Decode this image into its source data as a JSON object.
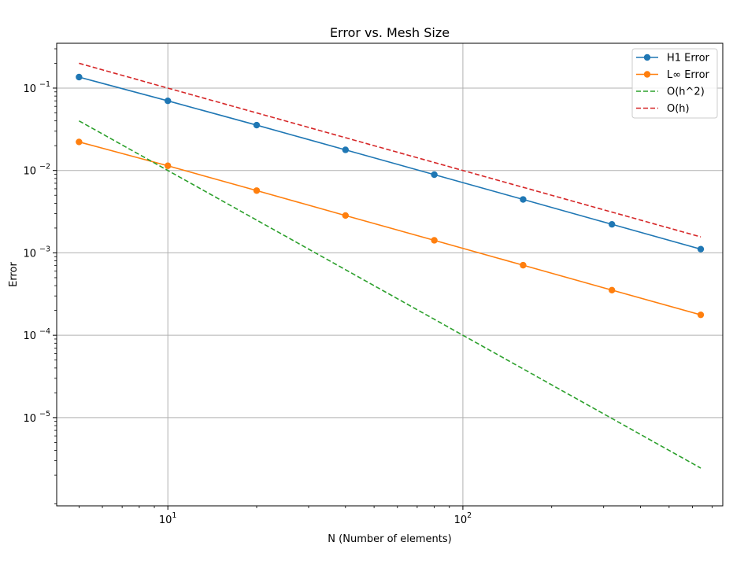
{
  "chart_data": {
    "type": "line",
    "title": "Error vs. Mesh Size",
    "xlabel": "N (Number of elements)",
    "ylabel": "Error",
    "xscale": "log",
    "yscale": "log",
    "xlim": [
      4.2,
      760
    ],
    "ylim": [
      8.5e-07,
      0.35
    ],
    "grid": true,
    "legend_position": "top-right",
    "x_ticks": [
      {
        "value": 10,
        "base": "10",
        "exp": "1"
      },
      {
        "value": 100,
        "base": "10",
        "exp": "2"
      }
    ],
    "y_ticks": [
      {
        "value": 0.1,
        "base": "10",
        "exp": "−1"
      },
      {
        "value": 0.01,
        "base": "10",
        "exp": "−2"
      },
      {
        "value": 0.001,
        "base": "10",
        "exp": "−3"
      },
      {
        "value": 0.0001,
        "base": "10",
        "exp": "−4"
      },
      {
        "value": 1e-05,
        "base": "10",
        "exp": "−5"
      }
    ],
    "series": [
      {
        "name": "H1 Error",
        "color": "#1f77b4",
        "style": "solid",
        "marker": "circle",
        "x": [
          5,
          10,
          20,
          40,
          80,
          160,
          320,
          640
        ],
        "y": [
          0.136,
          0.07,
          0.0355,
          0.0178,
          0.0089,
          0.00445,
          0.00222,
          0.00111
        ]
      },
      {
        "name": "L∞ Error",
        "color": "#ff7f0e",
        "style": "solid",
        "marker": "circle",
        "x": [
          5,
          10,
          20,
          40,
          80,
          160,
          320,
          640
        ],
        "y": [
          0.0222,
          0.0114,
          0.0057,
          0.00284,
          0.00142,
          0.000708,
          0.000353,
          0.000177
        ]
      },
      {
        "name": "O(h^2)",
        "color": "#2ca02c",
        "style": "dashed",
        "marker": "none",
        "x": [
          5,
          10,
          20,
          40,
          80,
          160,
          320,
          640
        ],
        "y": [
          0.04,
          0.01,
          0.0025,
          0.000625,
          0.00015625,
          3.90625e-05,
          9.7656e-06,
          2.4414e-06
        ]
      },
      {
        "name": "O(h)",
        "color": "#d62728",
        "style": "dashed",
        "marker": "none",
        "x": [
          5,
          10,
          20,
          40,
          80,
          160,
          320,
          640
        ],
        "y": [
          0.2,
          0.1,
          0.05,
          0.025,
          0.0125,
          0.00625,
          0.003125,
          0.0015625
        ]
      }
    ]
  }
}
